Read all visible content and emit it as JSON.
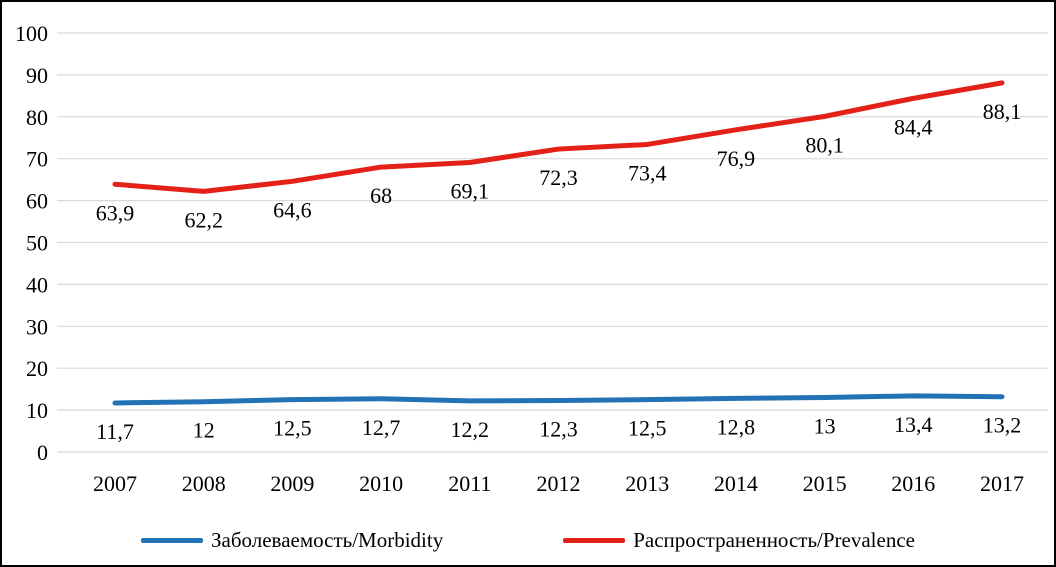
{
  "chart_data": {
    "type": "line",
    "categories": [
      "2007",
      "2008",
      "2009",
      "2010",
      "2011",
      "2012",
      "2013",
      "2014",
      "2015",
      "2016",
      "2017"
    ],
    "series": [
      {
        "name": "Заболеваемость/Morbidity",
        "color": "#2272b5",
        "values": [
          11.7,
          12,
          12.5,
          12.7,
          12.2,
          12.3,
          12.5,
          12.8,
          13,
          13.4,
          13.2
        ],
        "labels": [
          "11,7",
          "12",
          "12,5",
          "12,7",
          "12,2",
          "12,3",
          "12,5",
          "12,8",
          "13",
          "13,4",
          "13,2"
        ]
      },
      {
        "name": "Распространенность/Prevalence",
        "color": "#e32119",
        "values": [
          63.9,
          62.2,
          64.6,
          68,
          69.1,
          72.3,
          73.4,
          76.9,
          80.1,
          84.4,
          88.1
        ],
        "labels": [
          "63,9",
          "62,2",
          "64,6",
          "68",
          "69,1",
          "72,3",
          "73,4",
          "76,9",
          "80,1",
          "84,4",
          "88,1"
        ]
      }
    ],
    "title": "",
    "xlabel": "",
    "ylabel": "",
    "ylim": [
      0,
      100
    ],
    "ytick_step": 10,
    "ytick_labels": [
      "0",
      "10",
      "20",
      "30",
      "40",
      "50",
      "60",
      "70",
      "80",
      "90",
      "100"
    ],
    "grid": "horizontal",
    "gridline_color": "#d9d9d9",
    "legend_position": "bottom"
  }
}
